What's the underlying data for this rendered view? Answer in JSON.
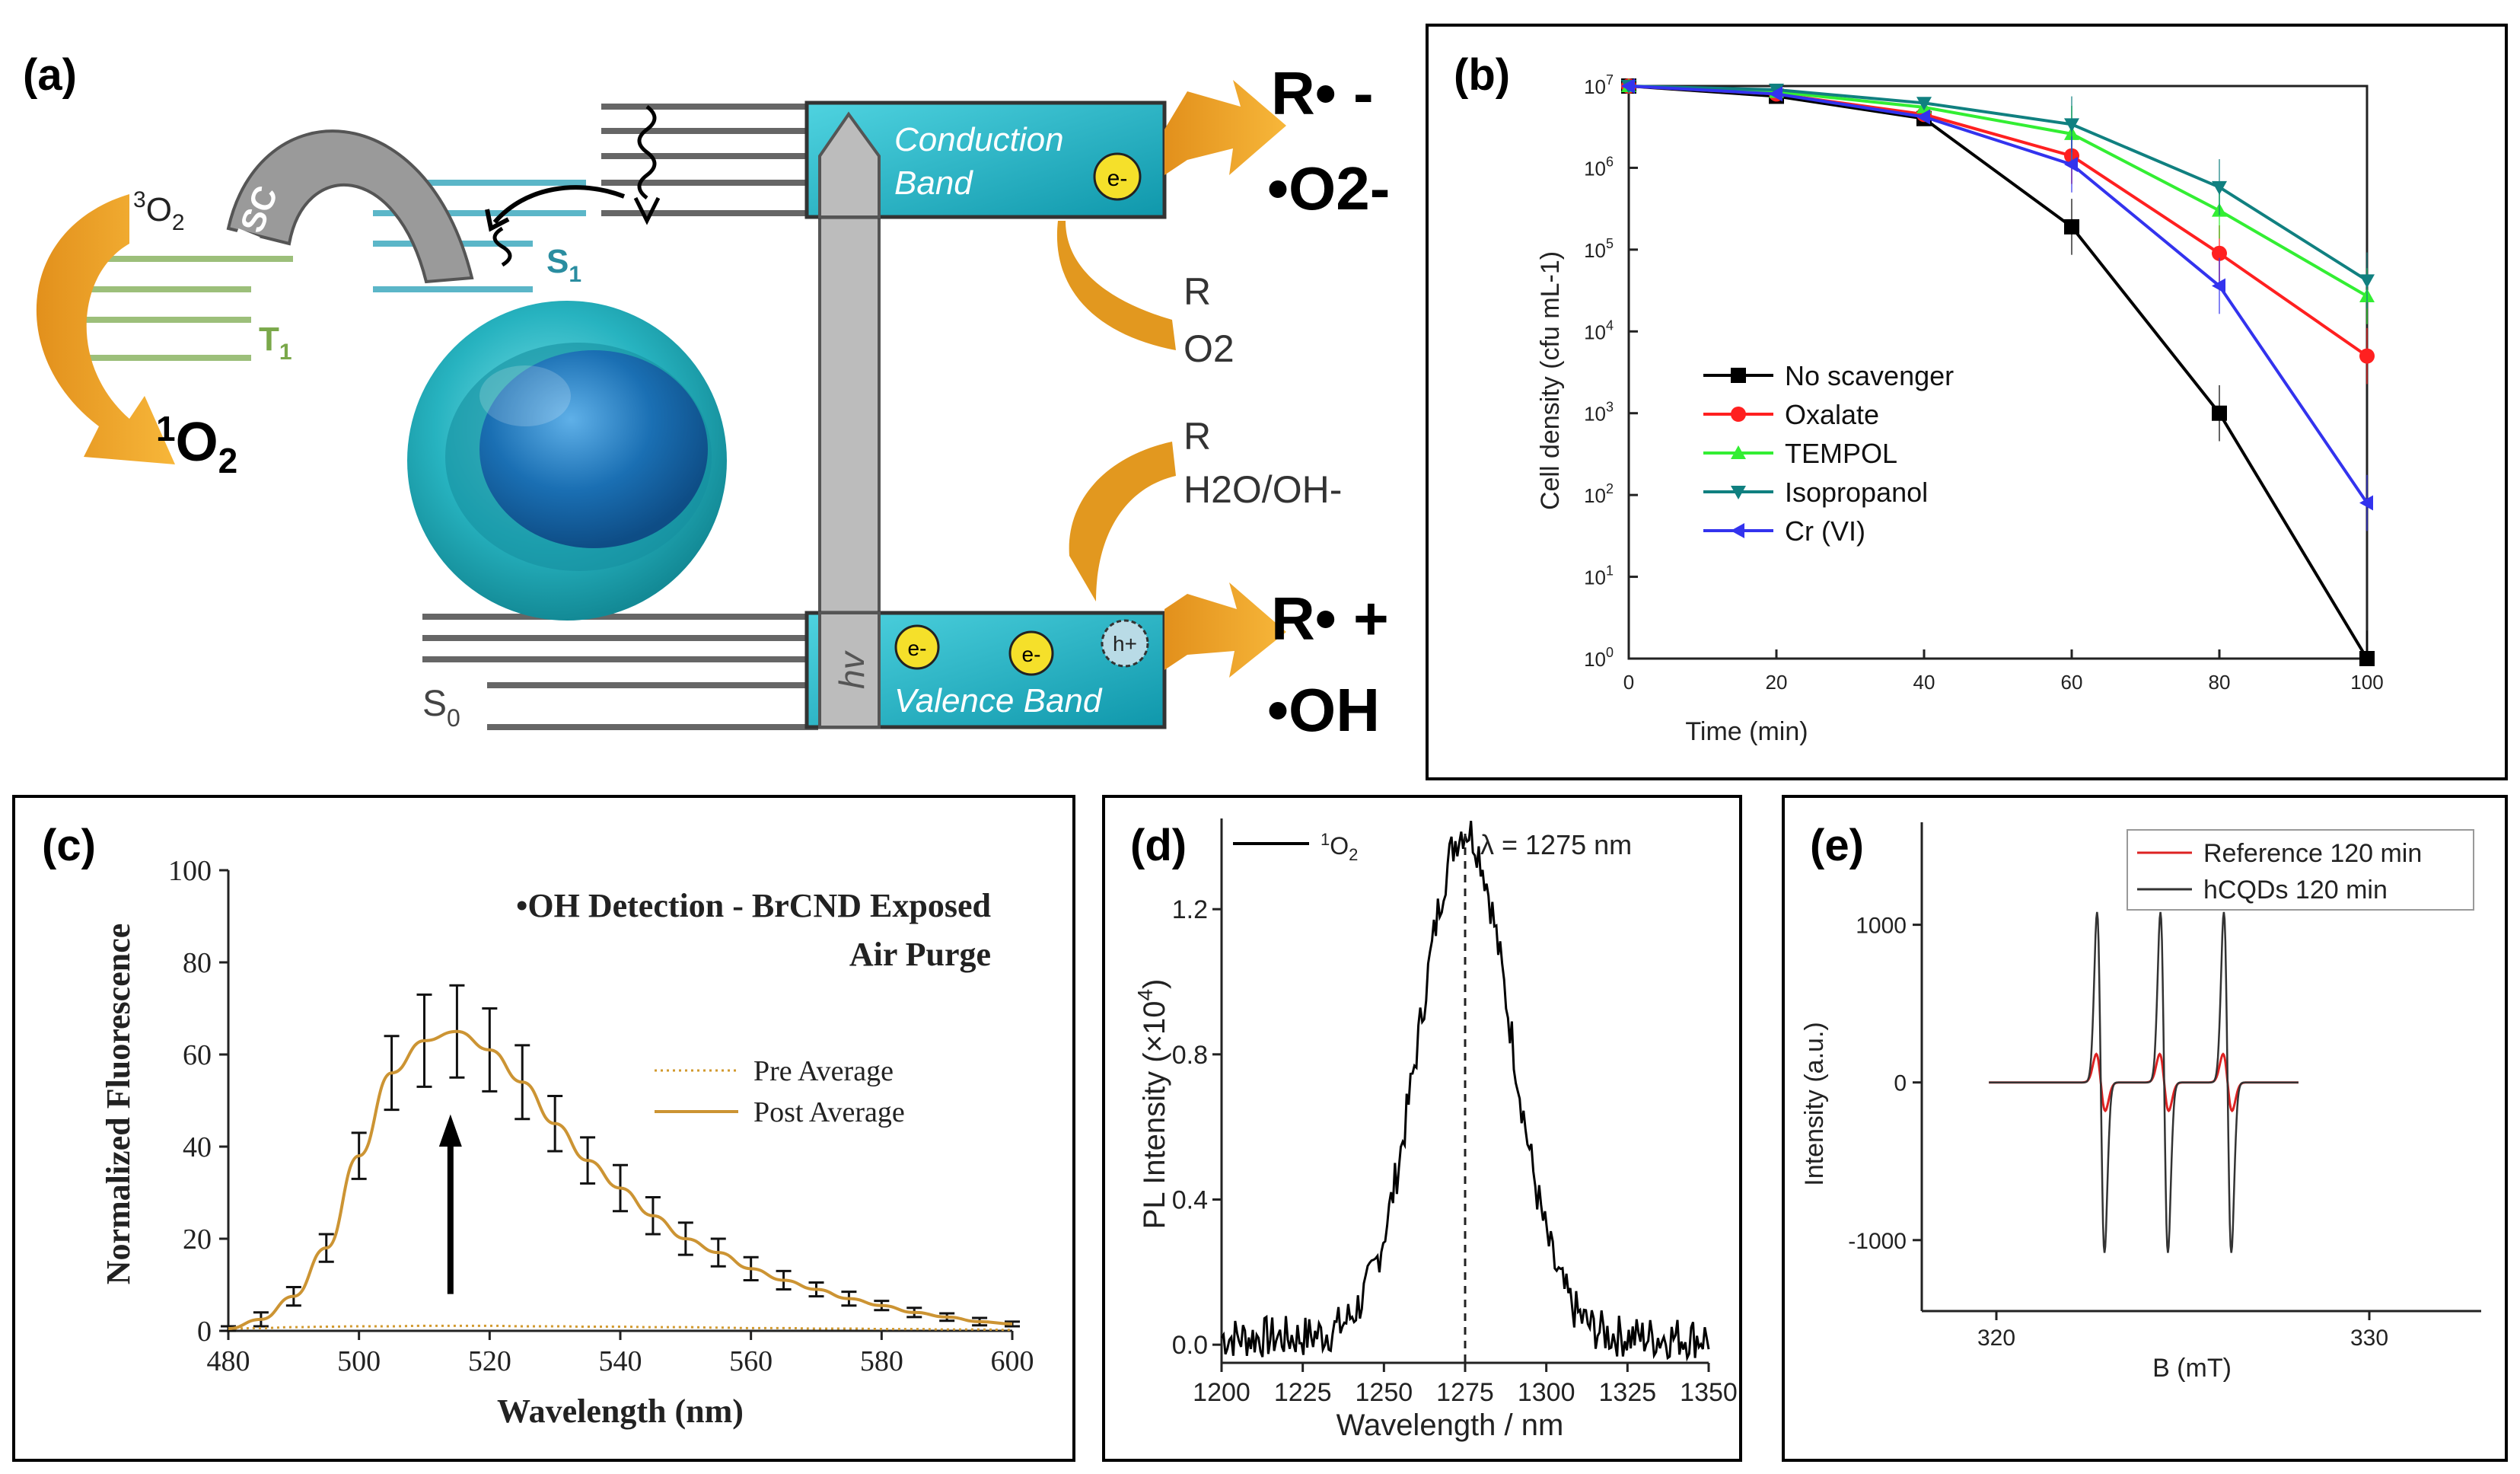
{
  "panels": {
    "a": {
      "letter": "(a)",
      "conduction_band": [
        "Conduction",
        "Band"
      ],
      "valence_band": "Valence Band",
      "hv": "hv",
      "isc": "ISC",
      "o2_triplet": {
        "sup": "3",
        "base": "O",
        "sub": "2"
      },
      "o2_singlet": {
        "sup": "1",
        "base": "O",
        "sub": "2"
      },
      "s1": {
        "base": "S",
        "sub": "1"
      },
      "t1": {
        "base": "T",
        "sub": "1"
      },
      "s0": {
        "base": "S",
        "sub": "0"
      },
      "electron": "e-",
      "hole": "h+",
      "cb_reactants": [
        "R",
        "O2"
      ],
      "vb_reactants": [
        "R",
        "H2O/OH-"
      ],
      "cb_products": [
        "R• -",
        "•O2-"
      ],
      "vb_products": [
        "R• +",
        "•OH"
      ],
      "colors": {
        "band": "#1ab5c8",
        "arrow": "#f0a92b",
        "s_level": "#5bb6c8",
        "t_level": "#9cbf7a",
        "hv_bar": "#b8b8b8"
      }
    }
  },
  "chart_data": [
    {
      "panel": "(b)",
      "type": "line",
      "y_scale": "log",
      "xlabel": "Time (min)",
      "ylabel": "Cell density (cfu mL-1)",
      "xlim": [
        0,
        100
      ],
      "ylim": [
        1,
        10000000
      ],
      "xticks": [
        "0",
        "20",
        "40",
        "60",
        "80",
        "100"
      ],
      "yticks": [
        {
          "base": "10",
          "exp": "0"
        },
        {
          "base": "10",
          "exp": "1"
        },
        {
          "base": "10",
          "exp": "2"
        },
        {
          "base": "10",
          "exp": "3"
        },
        {
          "base": "10",
          "exp": "4"
        },
        {
          "base": "10",
          "exp": "5"
        },
        {
          "base": "10",
          "exp": "6"
        },
        {
          "base": "10",
          "exp": "7"
        }
      ],
      "legend_position": "left",
      "x": [
        0,
        20,
        40,
        60,
        80,
        100
      ],
      "series": [
        {
          "name": "No scavenger",
          "color": "#000000",
          "marker": "square",
          "values": [
            10000000,
            7500000,
            4000000,
            190000,
            1000,
            1
          ]
        },
        {
          "name": "Oxalate",
          "color": "#ff2020",
          "marker": "circle",
          "values": [
            10000000,
            8000000,
            4500000,
            1400000,
            90000,
            5000
          ]
        },
        {
          "name": "TEMPOL",
          "color": "#33ee33",
          "marker": "triangle-up",
          "values": [
            10000000,
            8500000,
            5500000,
            2600000,
            300000,
            27000
          ]
        },
        {
          "name": "Isopropanol",
          "color": "#108080",
          "marker": "triangle-down",
          "values": [
            10000000,
            9000000,
            6200000,
            3400000,
            580000,
            42000
          ]
        },
        {
          "name": "Cr (VI)",
          "color": "#3333ee",
          "marker": "triangle-left",
          "values": [
            10000000,
            8000000,
            4200000,
            1100000,
            36000,
            80
          ]
        }
      ]
    },
    {
      "panel": "(c)",
      "type": "line",
      "title": "•OH Detection - BrCND Exposed",
      "subtitle": "Air Purge",
      "xlabel": "Wavelength (nm)",
      "ylabel": "Normalized Fluorescence",
      "xlim": [
        480,
        600
      ],
      "ylim": [
        0,
        100
      ],
      "xticks": [
        "480",
        "500",
        "520",
        "540",
        "560",
        "580",
        "600"
      ],
      "yticks": [
        "0",
        "20",
        "40",
        "60",
        "80",
        "100"
      ],
      "legend_position": "right",
      "x": [
        480,
        485,
        490,
        495,
        500,
        505,
        510,
        515,
        520,
        525,
        530,
        535,
        540,
        545,
        550,
        555,
        560,
        565,
        570,
        575,
        580,
        585,
        590,
        595,
        600
      ],
      "series": [
        {
          "name": "Pre Average",
          "color": "#d29a2e",
          "style": "dotted",
          "values": [
            0.5,
            0.6,
            0.8,
            0.9,
            1.0,
            1.0,
            1.1,
            1.1,
            1.1,
            1.0,
            1.0,
            0.9,
            0.9,
            0.8,
            0.8,
            0.7,
            0.6,
            0.6,
            0.5,
            0.5,
            0.4,
            0.4,
            0.3,
            0.3,
            0.2
          ]
        },
        {
          "name": "Post Average",
          "color": "#cc9433",
          "style": "solid",
          "values": [
            0.5,
            2.5,
            7.5,
            18,
            38,
            56,
            63,
            65,
            61,
            54,
            45,
            37,
            31,
            25,
            20,
            17,
            13.5,
            11,
            9,
            7,
            5.5,
            4,
            3,
            2,
            1.5
          ]
        }
      ],
      "error_bars": [
        0.5,
        1.5,
        2,
        3,
        5,
        8,
        10,
        10,
        9,
        8,
        6,
        5,
        5,
        4,
        3.5,
        3,
        2.5,
        2,
        1.5,
        1.5,
        1,
        1,
        0.8,
        0.8,
        0.5
      ]
    },
    {
      "panel": "(d)",
      "type": "line",
      "xlabel": "Wavelength / nm",
      "ylabel_prefix": "PL Intensity (×10",
      "ylabel_exp": "4",
      "ylabel_suffix": ")",
      "xlim": [
        1200,
        1350
      ],
      "ylim": [
        -0.05,
        1.45
      ],
      "xticks": [
        "1200",
        "1225",
        "1250",
        "1275",
        "1300",
        "1325",
        "1350"
      ],
      "yticks": [
        "0.0",
        "0.4",
        "0.8",
        "1.2"
      ],
      "peak_label": "λ = 1275 nm",
      "peak_x": 1275,
      "legend_position": "top-left",
      "series": [
        {
          "name_sup": "1",
          "name_base": "O",
          "name_sub": "2",
          "color": "#000000",
          "peak_center": 1275,
          "peak_height": 1.4,
          "peak_width": 14
        }
      ]
    },
    {
      "panel": "(e)",
      "type": "line",
      "xlabel": "B (mT)",
      "ylabel": "Intensity (a.u.)",
      "xlim": [
        318,
        333
      ],
      "ylim": [
        -1450,
        1650
      ],
      "xticks": [
        "320",
        "330"
      ],
      "yticks": [
        "-1000",
        "0",
        "1000"
      ],
      "legend_position": "top-right",
      "series": [
        {
          "name": "Reference 120 min",
          "color": "#dd2222",
          "centers": [
            322.8,
            324.5,
            326.2
          ],
          "amplitude": 180,
          "width": 0.12
        },
        {
          "name": "hCQDs 120 min",
          "color": "#333333",
          "centers": [
            322.8,
            324.5,
            326.2
          ],
          "amplitude": 1080,
          "width": 0.1
        }
      ]
    }
  ]
}
